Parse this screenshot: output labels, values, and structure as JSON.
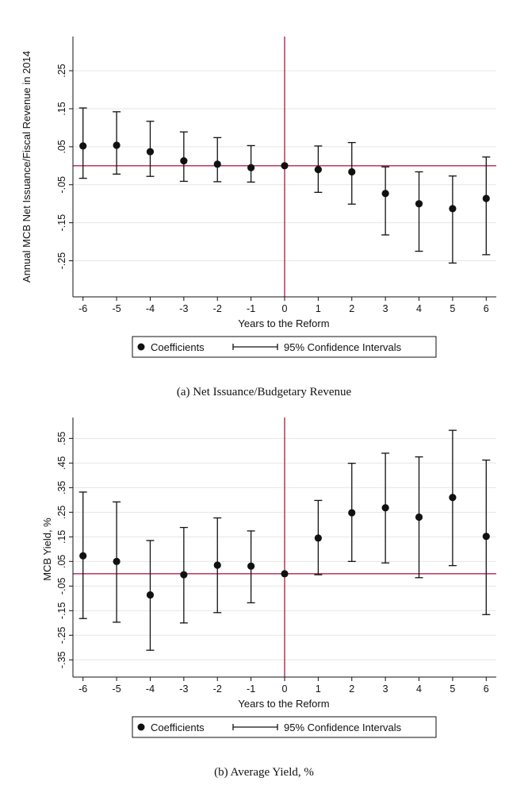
{
  "colors": {
    "reference_line": "#b5264c",
    "points": "#111111"
  },
  "chart_data": [
    {
      "type": "scatter",
      "caption": "(a) Net Issuance/Budgetary Revenue",
      "xlabel": "Years to the Reform",
      "ylabel": "Annual MCB Net Issuance/Fiscal Revenue in 2014",
      "x_ticks": [
        "-6",
        "-5",
        "-4",
        "-3",
        "-2",
        "-1",
        "0",
        "1",
        "2",
        "3",
        "4",
        "5",
        "6"
      ],
      "y_ticks": [
        ".25",
        ".15",
        ".05",
        "-.05",
        "-.15",
        "-.25"
      ],
      "y_tick_values": [
        0.25,
        0.15,
        0.05,
        -0.05,
        -0.15,
        -0.25
      ],
      "xlim": [
        -6.3,
        6.3
      ],
      "ylim": [
        -0.345,
        0.34
      ],
      "grid": true,
      "reference_lines": {
        "x": 0,
        "y": 0
      },
      "legend": {
        "position": "bottom",
        "items": [
          "Coefficients",
          "95% Confidence Intervals"
        ]
      },
      "x": [
        -6,
        -5,
        -4,
        -3,
        -2,
        -1,
        0,
        1,
        2,
        3,
        4,
        5,
        6
      ],
      "series": [
        {
          "name": "Coefficients",
          "values": [
            0.052,
            0.054,
            0.037,
            0.013,
            0.004,
            -0.005,
            0.0,
            -0.01,
            -0.016,
            -0.073,
            -0.1,
            -0.113,
            -0.086
          ],
          "ci_lower": [
            -0.033,
            -0.022,
            -0.028,
            -0.041,
            -0.042,
            -0.043,
            0.0,
            -0.07,
            -0.101,
            -0.182,
            -0.225,
            -0.256,
            -0.234
          ],
          "ci_upper": [
            0.152,
            0.142,
            0.117,
            0.089,
            0.074,
            0.053,
            0.0,
            0.052,
            0.061,
            -0.003,
            -0.016,
            -0.027,
            0.023
          ]
        }
      ]
    },
    {
      "type": "scatter",
      "caption": "(b) Average Yield, %",
      "xlabel": "Years to the Reform",
      "ylabel": "MCB Yield, %",
      "x_ticks": [
        "-6",
        "-5",
        "-4",
        "-3",
        "-2",
        "-1",
        "0",
        "1",
        "2",
        "3",
        "4",
        "5",
        "6"
      ],
      "y_ticks": [
        ".55",
        ".45",
        ".35",
        ".25",
        ".15",
        ".05",
        "-.05",
        "-.15",
        "-.25",
        "-.35"
      ],
      "y_tick_values": [
        0.55,
        0.45,
        0.35,
        0.25,
        0.15,
        0.05,
        -0.05,
        -0.15,
        -0.25,
        -0.35
      ],
      "xlim": [
        -6.3,
        6.3
      ],
      "ylim": [
        -0.42,
        0.635
      ],
      "grid": true,
      "reference_lines": {
        "x": 0,
        "y": 0
      },
      "legend": {
        "position": "bottom",
        "items": [
          "Coefficients",
          "95% Confidence Intervals"
        ]
      },
      "x": [
        -6,
        -5,
        -4,
        -3,
        -2,
        -1,
        0,
        1,
        2,
        3,
        4,
        5,
        6
      ],
      "series": [
        {
          "name": "Coefficients",
          "values": [
            0.073,
            0.05,
            -0.086,
            -0.004,
            0.035,
            0.031,
            0.0,
            0.145,
            0.248,
            0.268,
            0.23,
            0.31,
            0.152
          ],
          "ci_lower": [
            -0.182,
            -0.197,
            -0.311,
            -0.2,
            -0.158,
            -0.118,
            0.0,
            -0.004,
            0.05,
            0.044,
            -0.016,
            0.033,
            -0.166
          ],
          "ci_upper": [
            0.332,
            0.292,
            0.135,
            0.188,
            0.227,
            0.174,
            0.0,
            0.298,
            0.449,
            0.49,
            0.475,
            0.583,
            0.462
          ]
        }
      ]
    }
  ]
}
